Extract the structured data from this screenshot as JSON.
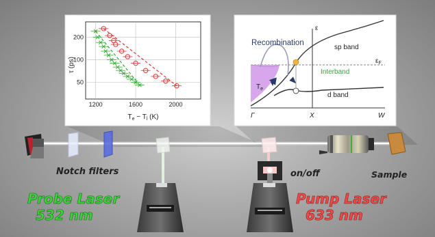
{
  "left_plot": {
    "chart_data": {
      "type": "scatter",
      "ylabel": "τ (ps)",
      "xlabel": "T_e − T_l (K)",
      "x_ticks": [
        1200,
        1600,
        2000
      ],
      "y_ticks": [
        50,
        100,
        200
      ],
      "x_range": [
        1100,
        2250
      ],
      "y_range": [
        30,
        320
      ],
      "y_scale": "log",
      "grid": true,
      "series": [
        {
          "color": "#dd3333",
          "marker": "open-circle",
          "fit": "dashed",
          "points": [
            [
              1280,
              260
            ],
            [
              1340,
              210
            ],
            [
              1400,
              160
            ],
            [
              1460,
              130
            ],
            [
              1380,
              180
            ],
            [
              1520,
              110
            ],
            [
              1600,
              90
            ],
            [
              1700,
              72
            ],
            [
              1800,
              60
            ],
            [
              1900,
              52
            ],
            [
              2010,
              45
            ]
          ]
        },
        {
          "color": "#33aa33",
          "marker": "cross",
          "fit": "dashed",
          "points": [
            [
              1200,
              240
            ],
            [
              1220,
              200
            ],
            [
              1250,
              170
            ],
            [
              1280,
              150
            ],
            [
              1300,
              130
            ],
            [
              1330,
              115
            ],
            [
              1360,
              100
            ],
            [
              1390,
              90
            ],
            [
              1420,
              80
            ],
            [
              1450,
              72
            ],
            [
              1480,
              66
            ],
            [
              1520,
              60
            ],
            [
              1560,
              55
            ],
            [
              1600,
              50
            ],
            [
              1640,
              46
            ]
          ]
        }
      ]
    },
    "ylabel_text": "τ (ps)",
    "xlabel_main": "T",
    "xlabel_sub1": "e",
    "xlabel_mid": " − T",
    "xlabel_sub2": "l",
    "xlabel_unit": " (K)"
  },
  "band_diagram": {
    "recombination": "Recombination",
    "sp_band": "sp band",
    "interband": "Interband",
    "d_band": "d band",
    "epsilon": "ε",
    "epsilon_f": "ε",
    "epsilon_f_sub": "F",
    "te": "T",
    "te_sub": "e",
    "gamma": "Γ",
    "x_point": "X",
    "w_point": "W"
  },
  "setup": {
    "notch_filters": "Notch filters",
    "sample": "Sample",
    "on_off": "on/off",
    "probe_laser": "Probe Laser",
    "probe_wavelength": "532 nm",
    "pump_laser": "Pump Laser",
    "pump_wavelength": "633 nm",
    "colors": {
      "probe": "#3bd23b",
      "pump": "#ef4a4a"
    }
  }
}
